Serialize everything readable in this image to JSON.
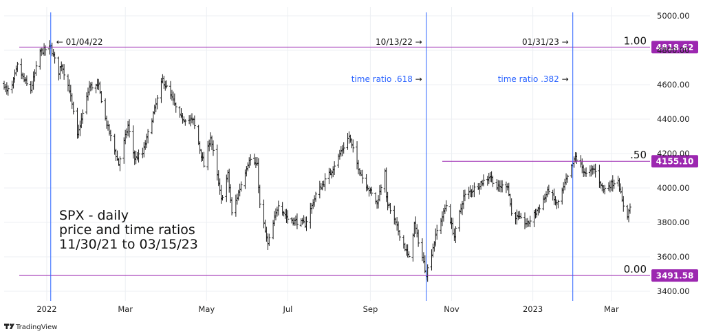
{
  "chart_data": {
    "type": "ohlc",
    "title_lines": [
      "SPX - daily",
      "price and time ratios",
      "11/30/21 to 03/15/23"
    ],
    "y_ticks": [
      3400,
      3600,
      3800,
      4000,
      4200,
      4400,
      4600,
      4800,
      5000
    ],
    "y_tick_labels": [
      "3400.00",
      "3600.00",
      "3800.00",
      "4000.00",
      "4200.00",
      "4400.00",
      "4600.00",
      "4800.00",
      "5000.00"
    ],
    "ylim": [
      3400,
      5000
    ],
    "x_range": [
      "2021-11-30",
      "2023-03-30"
    ],
    "x_ticks": [
      {
        "date": "2022-01-01",
        "label": "2022"
      },
      {
        "date": "2022-03-01",
        "label": "Mar"
      },
      {
        "date": "2022-05-01",
        "label": "May"
      },
      {
        "date": "2022-07-01",
        "label": "Jul"
      },
      {
        "date": "2022-09-01",
        "label": "Sep"
      },
      {
        "date": "2022-11-01",
        "label": "Nov"
      },
      {
        "date": "2023-01-01",
        "label": "2023"
      },
      {
        "date": "2023-03-01",
        "label": "Mar"
      }
    ],
    "horizontal_levels": [
      {
        "ratio": "1.00",
        "price": 4818.62,
        "label": "4818.62",
        "start": "2021-11-30"
      },
      {
        "ratio": ".50",
        "price": 4155.1,
        "label": "4155.10",
        "start": "2022-10-25"
      },
      {
        "ratio": "0.00",
        "price": 3491.58,
        "label": "3491.58",
        "start": "2021-11-30"
      }
    ],
    "vertical_lines": [
      {
        "date": "2022-01-04",
        "label": "01/04/22",
        "arrow": "←",
        "ratio_label": ""
      },
      {
        "date": "2022-10-13",
        "label": "10/13/22",
        "arrow": "→",
        "ratio_label": "time ratio  .618"
      },
      {
        "date": "2023-01-31",
        "label": "01/31/23",
        "arrow": "→",
        "ratio_label": "time ratio  .382"
      }
    ],
    "price_path": [
      [
        "2021-11-30",
        4600
      ],
      [
        "2021-12-02",
        4560
      ],
      [
        "2021-12-06",
        4590
      ],
      [
        "2021-12-10",
        4710
      ],
      [
        "2021-12-14",
        4640
      ],
      [
        "2021-12-17",
        4600
      ],
      [
        "2021-12-20",
        4570
      ],
      [
        "2021-12-27",
        4790
      ],
      [
        "2022-01-04",
        4818
      ],
      [
        "2022-01-10",
        4670
      ],
      [
        "2022-01-12",
        4720
      ],
      [
        "2022-01-18",
        4570
      ],
      [
        "2022-01-24",
        4300
      ],
      [
        "2022-01-28",
        4430
      ],
      [
        "2022-02-02",
        4590
      ],
      [
        "2022-02-09",
        4590
      ],
      [
        "2022-02-14",
        4400
      ],
      [
        "2022-02-24",
        4140
      ],
      [
        "2022-03-03",
        4360
      ],
      [
        "2022-03-08",
        4170
      ],
      [
        "2022-03-14",
        4200
      ],
      [
        "2022-03-29",
        4630
      ],
      [
        "2022-04-05",
        4520
      ],
      [
        "2022-04-11",
        4410
      ],
      [
        "2022-04-21",
        4390
      ],
      [
        "2022-04-29",
        4130
      ],
      [
        "2022-05-04",
        4300
      ],
      [
        "2022-05-12",
        3930
      ],
      [
        "2022-05-17",
        4080
      ],
      [
        "2022-05-20",
        3850
      ],
      [
        "2022-06-02",
        4170
      ],
      [
        "2022-06-08",
        4130
      ],
      [
        "2022-06-10",
        3900
      ],
      [
        "2022-06-16",
        3670
      ],
      [
        "2022-06-24",
        3910
      ],
      [
        "2022-07-01",
        3820
      ],
      [
        "2022-07-14",
        3790
      ],
      [
        "2022-07-22",
        3960
      ],
      [
        "2022-08-02",
        4090
      ],
      [
        "2022-08-16",
        4300
      ],
      [
        "2022-08-22",
        4140
      ],
      [
        "2022-08-26",
        4060
      ],
      [
        "2022-09-06",
        3910
      ],
      [
        "2022-09-12",
        4110
      ],
      [
        "2022-09-13",
        3930
      ],
      [
        "2022-09-30",
        3590
      ],
      [
        "2022-10-04",
        3790
      ],
      [
        "2022-10-13",
        3500
      ],
      [
        "2022-10-21",
        3750
      ],
      [
        "2022-10-28",
        3900
      ],
      [
        "2022-11-03",
        3720
      ],
      [
        "2022-11-10",
        3950
      ],
      [
        "2022-11-30",
        4070
      ],
      [
        "2022-12-05",
        4000
      ],
      [
        "2022-12-13",
        4020
      ],
      [
        "2022-12-16",
        3850
      ],
      [
        "2022-12-28",
        3790
      ],
      [
        "2023-01-06",
        3890
      ],
      [
        "2023-01-13",
        3990
      ],
      [
        "2023-01-19",
        3900
      ],
      [
        "2023-02-02",
        4180
      ],
      [
        "2023-02-10",
        4080
      ],
      [
        "2023-02-16",
        4110
      ],
      [
        "2023-02-23",
        3990
      ],
      [
        "2023-03-06",
        4050
      ],
      [
        "2023-03-09",
        3920
      ],
      [
        "2023-03-13",
        3840
      ],
      [
        "2023-03-15",
        3890
      ]
    ],
    "colors": {
      "vertical": "#2962ff",
      "horizontal": "#9c27b0",
      "badge": "#9c27b0",
      "bars": "#1a1a1a",
      "grid": "#eceff3"
    },
    "grid": true
  },
  "branding": {
    "logo_text": "TradingView",
    "logo_icon": "tradingview-logo-icon"
  }
}
